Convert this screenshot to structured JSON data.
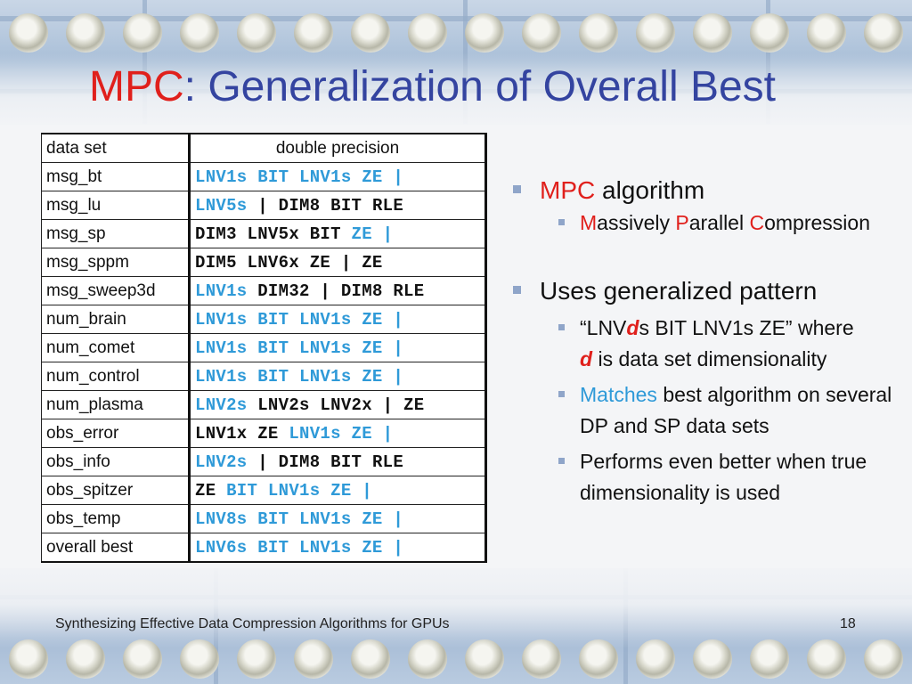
{
  "title": {
    "accent": "MPC",
    "rest": ": Generalization of Overall Best"
  },
  "table": {
    "header": {
      "col1": "data set",
      "col2": "double precision"
    },
    "rows": [
      {
        "name": "msg_bt",
        "segs": [
          {
            "t": "LNV1s BIT LNV1s ZE |",
            "c": "blue"
          }
        ]
      },
      {
        "name": "msg_lu",
        "segs": [
          {
            "t": "LNV5s",
            "c": "blue"
          },
          {
            "t": " | DIM8 BIT RLE",
            "c": "black"
          }
        ]
      },
      {
        "name": "msg_sp",
        "segs": [
          {
            "t": "DIM3 LNV5x BIT ",
            "c": "black"
          },
          {
            "t": "ZE |",
            "c": "blue"
          }
        ]
      },
      {
        "name": "msg_sppm",
        "segs": [
          {
            "t": "DIM5 LNV6x ZE | ZE",
            "c": "black"
          }
        ]
      },
      {
        "name": "msg_sweep3d",
        "segs": [
          {
            "t": "LNV1s",
            "c": "blue"
          },
          {
            "t": " DIM32 | DIM8 RLE",
            "c": "black"
          }
        ]
      },
      {
        "name": "num_brain",
        "segs": [
          {
            "t": "LNV1s BIT LNV1s ZE |",
            "c": "blue"
          }
        ]
      },
      {
        "name": "num_comet",
        "segs": [
          {
            "t": "LNV1s BIT LNV1s ZE |",
            "c": "blue"
          }
        ]
      },
      {
        "name": "num_control",
        "segs": [
          {
            "t": "LNV1s BIT LNV1s ZE |",
            "c": "blue"
          }
        ]
      },
      {
        "name": "num_plasma",
        "segs": [
          {
            "t": "LNV2s",
            "c": "blue"
          },
          {
            "t": " LNV2s LNV2x | ZE",
            "c": "black"
          }
        ]
      },
      {
        "name": "obs_error",
        "segs": [
          {
            "t": "LNV1x ZE ",
            "c": "black"
          },
          {
            "t": "LNV1s ZE |",
            "c": "blue"
          }
        ]
      },
      {
        "name": "obs_info",
        "segs": [
          {
            "t": "LNV2s",
            "c": "blue"
          },
          {
            "t": " | DIM8 BIT RLE",
            "c": "black"
          }
        ]
      },
      {
        "name": "obs_spitzer",
        "segs": [
          {
            "t": "ZE ",
            "c": "black"
          },
          {
            "t": "BIT LNV1s ZE |",
            "c": "blue"
          }
        ]
      },
      {
        "name": "obs_temp",
        "segs": [
          {
            "t": "LNV8s BIT LNV1s ZE |",
            "c": "blue"
          }
        ]
      },
      {
        "name": "overall best",
        "segs": [
          {
            "t": "LNV6s BIT LNV1s ZE |",
            "c": "blue"
          }
        ]
      }
    ]
  },
  "bullets": {
    "b1": {
      "accent": "MPC",
      "rest": " algorithm"
    },
    "b1_sub": {
      "m": "M",
      "assively": "assively ",
      "p": "P",
      "arallel": "arallel ",
      "c": "C",
      "ompression": "ompression"
    },
    "b2": "Uses generalized pattern",
    "b2_sub1": {
      "pre": "“LNV",
      "d": "d",
      "post": "s BIT LNV1s ZE” where",
      "d2": "d",
      "post2": " is data set dimensionality"
    },
    "b2_sub2": {
      "accent": "Matches",
      "rest": " best algorithm on several DP and SP data sets"
    },
    "b2_sub3": "Performs even better when true dimensionality is used"
  },
  "footer": {
    "text": "Synthesizing Effective Data Compression Algorithms for GPUs",
    "page": "18"
  },
  "colors": {
    "title": "#3444a0",
    "accent_red": "#e0201c",
    "accent_blue": "#2f9ad8"
  }
}
